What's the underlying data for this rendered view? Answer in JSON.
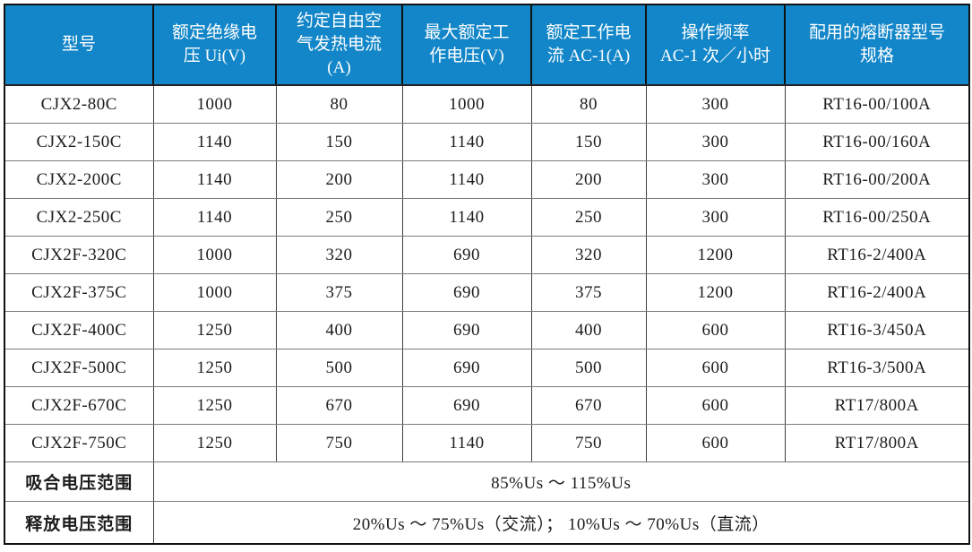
{
  "colors": {
    "header_bg": "#1286c8",
    "header_text": "#ffffff",
    "body_text": "#1c1c1c",
    "outer_border": "#111111",
    "inner_border": "#7a7a7a"
  },
  "table": {
    "headers": [
      "型号",
      "额定绝缘电\n压 Ui(V)",
      "约定自由空\n气发热电流\n(A)",
      "最大额定工\n作电压(V)",
      "额定工作电\n流 AC-1(A)",
      "操作频率\nAC-1 次／小时",
      "配用的熔断器型号\n规格"
    ],
    "rows": [
      [
        "CJX2-80C",
        "1000",
        "80",
        "1000",
        "80",
        "300",
        "RT16-00/100A"
      ],
      [
        "CJX2-150C",
        "1140",
        "150",
        "1140",
        "150",
        "300",
        "RT16-00/160A"
      ],
      [
        "CJX2-200C",
        "1140",
        "200",
        "1140",
        "200",
        "300",
        "RT16-00/200A"
      ],
      [
        "CJX2-250C",
        "1140",
        "250",
        "1140",
        "250",
        "300",
        "RT16-00/250A"
      ],
      [
        "CJX2F-320C",
        "1000",
        "320",
        "690",
        "320",
        "1200",
        "RT16-2/400A"
      ],
      [
        "CJX2F-375C",
        "1000",
        "375",
        "690",
        "375",
        "1200",
        "RT16-2/400A"
      ],
      [
        "CJX2F-400C",
        "1250",
        "400",
        "690",
        "400",
        "600",
        "RT16-3/450A"
      ],
      [
        "CJX2F-500C",
        "1250",
        "500",
        "690",
        "500",
        "600",
        "RT16-3/500A"
      ],
      [
        "CJX2F-670C",
        "1250",
        "670",
        "690",
        "670",
        "600",
        "RT17/800A"
      ],
      [
        "CJX2F-750C",
        "1250",
        "750",
        "1140",
        "750",
        "600",
        "RT17/800A"
      ]
    ],
    "footer": [
      {
        "label": "吸合电压范围",
        "value": "85%Us ～ 115%Us"
      },
      {
        "label": "释放电压范围",
        "value": "20%Us ～ 75%Us（交流）； 10%Us ～ 70%Us（直流）"
      }
    ]
  }
}
